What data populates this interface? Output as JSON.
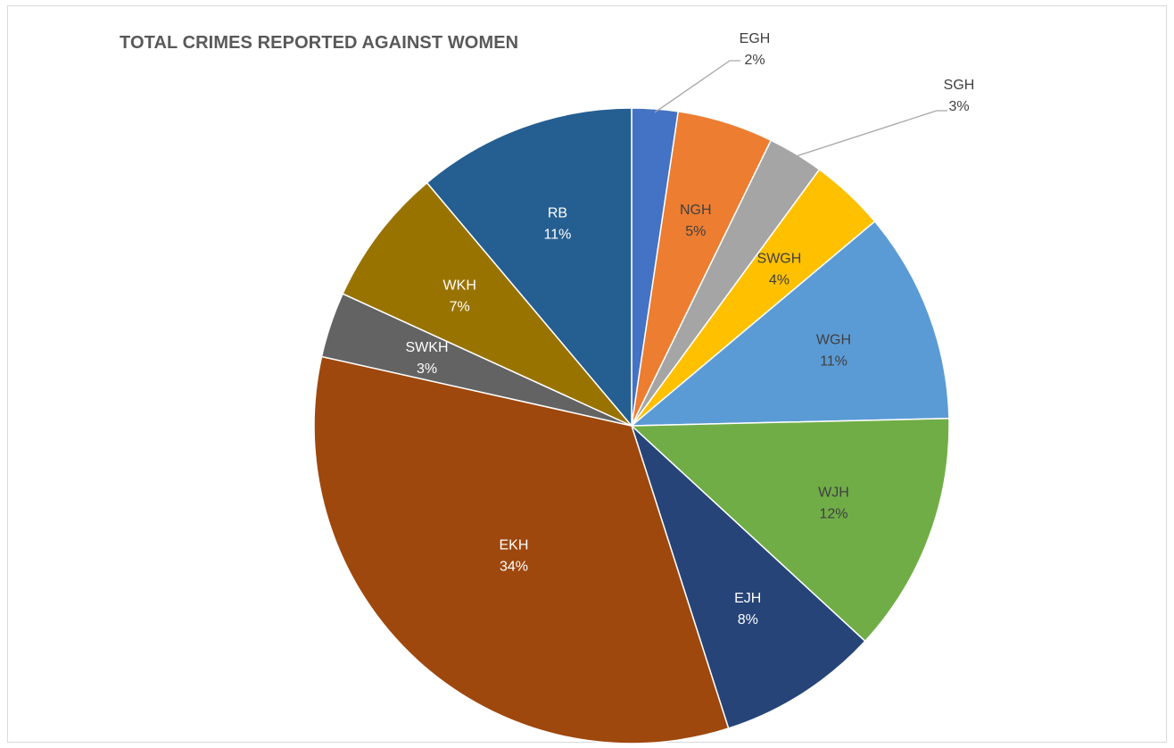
{
  "chart_data": {
    "type": "pie",
    "title": "TOTAL CRIMES REPORTED AGAINST WOMEN",
    "slices": [
      {
        "label": "EGH",
        "value": 2.4,
        "pct": "2%",
        "color": "#4472c4",
        "text_color": "#404040",
        "outside": true
      },
      {
        "label": "NGH",
        "value": 5.0,
        "pct": "5%",
        "color": "#ed7d31",
        "text_color": "#404040"
      },
      {
        "label": "SGH",
        "value": 2.9,
        "pct": "3%",
        "color": "#a5a5a5",
        "text_color": "#404040",
        "outside": true
      },
      {
        "label": "SWGH",
        "value": 3.9,
        "pct": "4%",
        "color": "#ffc000",
        "text_color": "#404040"
      },
      {
        "label": "WGH",
        "value": 11.0,
        "pct": "11%",
        "color": "#5b9bd5",
        "text_color": "#404040"
      },
      {
        "label": "WJH",
        "value": 12.5,
        "pct": "12%",
        "color": "#70ad47",
        "text_color": "#404040"
      },
      {
        "label": "EJH",
        "value": 8.4,
        "pct": "8%",
        "color": "#264478",
        "text_color": "#ffffff"
      },
      {
        "label": "EKH",
        "value": 34.2,
        "pct": "34%",
        "color": "#9e480e",
        "text_color": "#ffffff"
      },
      {
        "label": "SWKH",
        "value": 3.4,
        "pct": "3%",
        "color": "#636363",
        "text_color": "#ffffff"
      },
      {
        "label": "WKH",
        "value": 7.2,
        "pct": "7%",
        "color": "#997300",
        "text_color": "#ffffff"
      },
      {
        "label": "RB",
        "value": 11.4,
        "pct": "11%",
        "color": "#255e91",
        "text_color": "#ffffff"
      }
    ]
  }
}
